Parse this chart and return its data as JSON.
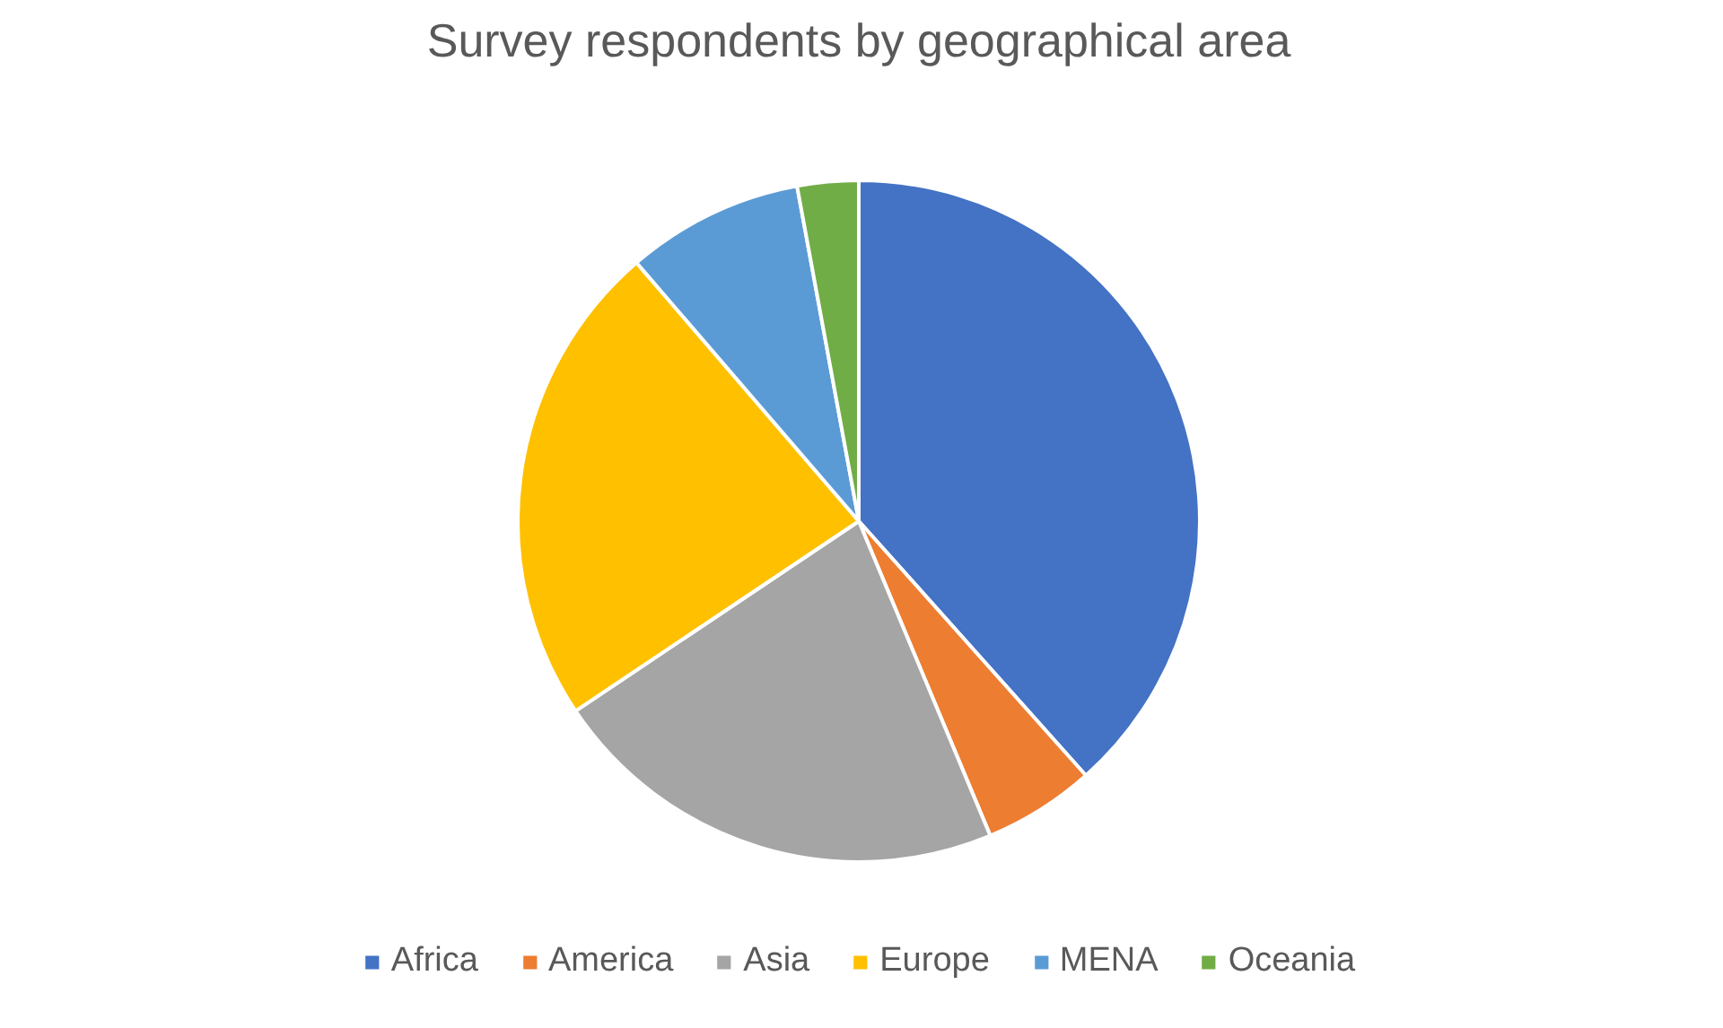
{
  "chart_data": {
    "type": "pie",
    "title": "Survey respondents by geographical area",
    "categories": [
      "Africa",
      "America",
      "Asia",
      "Europe",
      "MENA",
      "Oceania"
    ],
    "values": [
      38.4,
      5.3,
      21.9,
      23.1,
      8.4,
      2.9
    ],
    "colors": [
      "#4472c4",
      "#ed7d31",
      "#a5a5a5",
      "#ffc000",
      "#5b9bd5",
      "#70ad47"
    ],
    "legend": "bottom",
    "grid": false
  }
}
